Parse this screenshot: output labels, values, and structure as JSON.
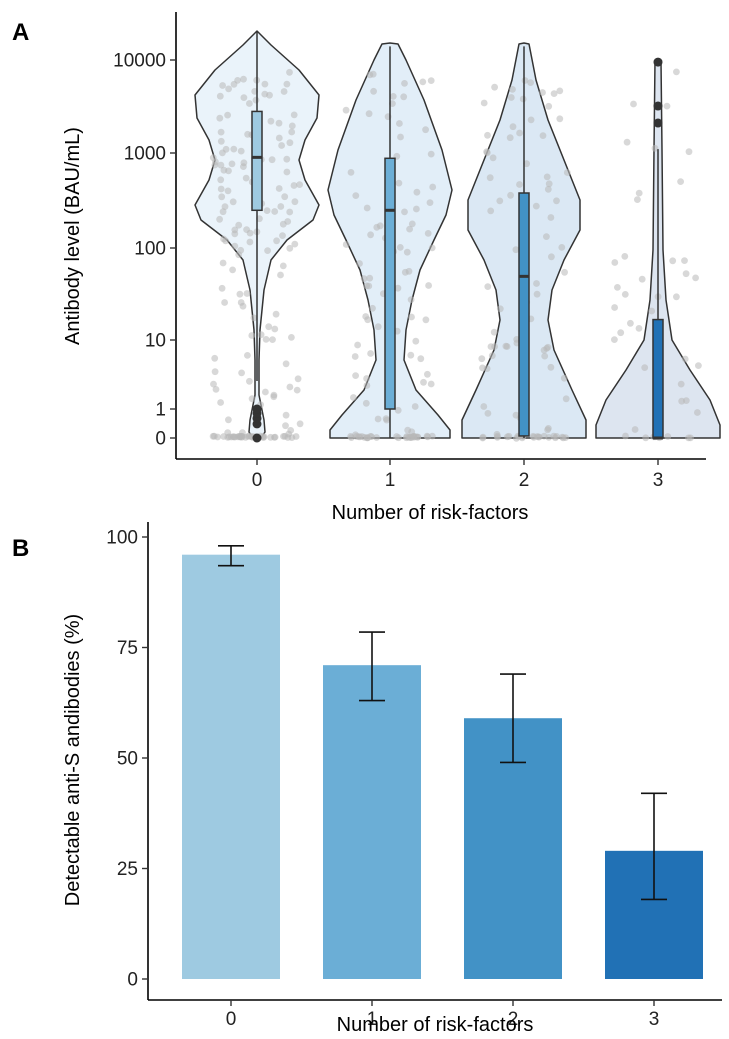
{
  "chart_data": [
    {
      "panel": "A",
      "type": "violin",
      "xlabel": "Number of risk-factors",
      "ylabel": "Antibody level (BAU/mL)",
      "y_scale": "pseudo-log",
      "ylim": [
        0,
        20000
      ],
      "categories": [
        "0",
        "1",
        "2",
        "3"
      ],
      "y_ticks": [
        "0",
        "1",
        "10",
        "100",
        "1000",
        "10000"
      ],
      "y_tick_values": [
        0,
        1,
        10,
        100,
        1000,
        10000
      ],
      "colors": [
        "#9ecae1",
        "#6baed6",
        "#4292c6",
        "#2171b5"
      ],
      "violin_fill": [
        "#eaf3fa",
        "#e2eef8",
        "#dbe8f4",
        "#dde5f0"
      ],
      "boxes": [
        {
          "category": "0",
          "q1": 250,
          "median": 900,
          "q3": 2800,
          "whisker_low": 3,
          "whisker_high": 20000,
          "outliers": [
            0,
            0.4,
            0.6,
            0.8,
            1
          ]
        },
        {
          "category": "1",
          "q1": 1,
          "median": 250,
          "q3": 880,
          "whisker_low": 0,
          "whisker_high": 14000,
          "outliers": []
        },
        {
          "category": "2",
          "q1": 0.05,
          "median": 50,
          "q3": 380,
          "whisker_low": 0,
          "whisker_high": 14000,
          "outliers": []
        },
        {
          "category": "3",
          "q1": 0,
          "median": 0,
          "q3": 17,
          "whisker_low": 0,
          "whisker_high": 1100,
          "outliers": [
            2100,
            3200,
            9500
          ]
        }
      ]
    },
    {
      "panel": "B",
      "type": "bar",
      "xlabel": "Number of risk-factors",
      "ylabel": "Detectable anti-S andibodies (%)",
      "categories": [
        "0",
        "1",
        "2",
        "3"
      ],
      "values": [
        96,
        71,
        59,
        29
      ],
      "error_low": [
        93.5,
        63,
        49,
        18
      ],
      "error_high": [
        98,
        78.5,
        69,
        42
      ],
      "ylim": [
        0,
        100
      ],
      "y_ticks": [
        0,
        25,
        50,
        75,
        100
      ],
      "colors": [
        "#9ecae1",
        "#6baed6",
        "#4292c6",
        "#2171b5"
      ]
    }
  ]
}
